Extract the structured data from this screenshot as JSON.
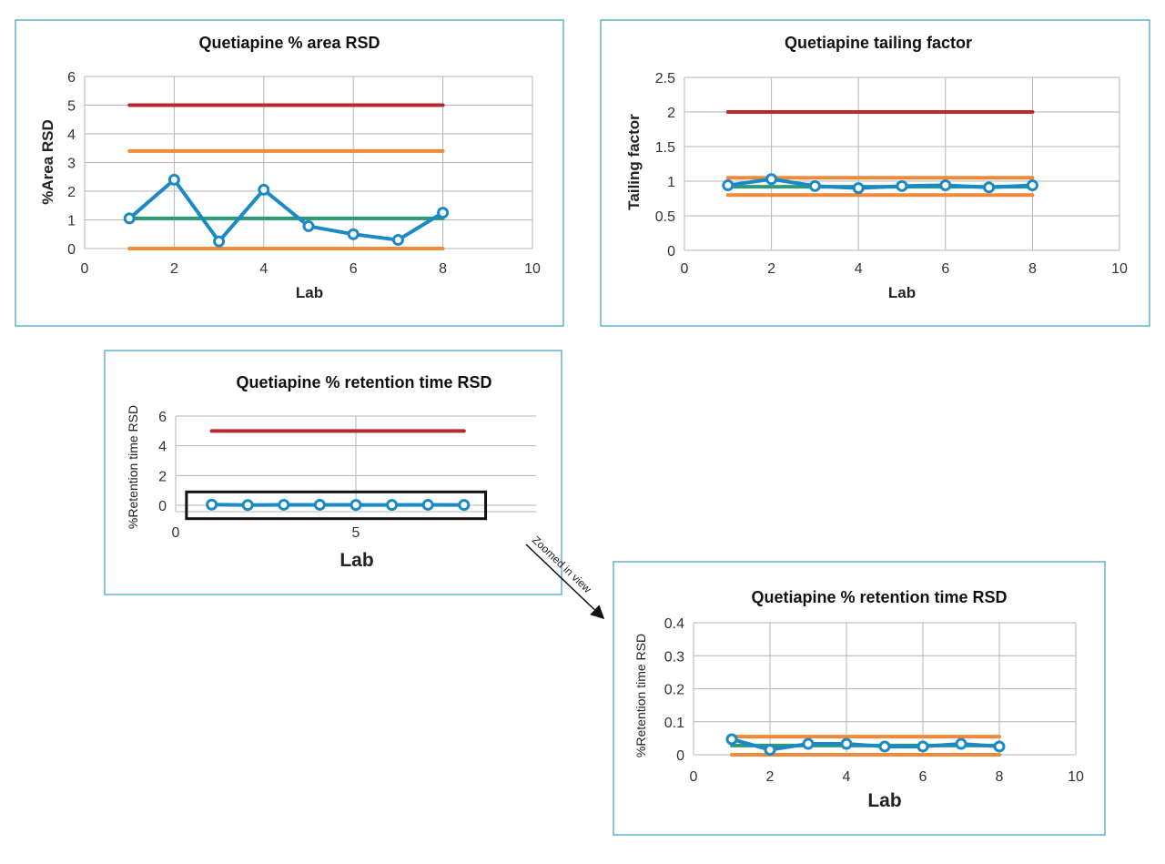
{
  "colors": {
    "panel_border": "#3b9cc0",
    "grid": "#b5b5b5",
    "series": "#1a8ac6",
    "upper_limit": "#b42a2e",
    "range": "#ee8a3a",
    "mean": "#2e9a7a",
    "highlight": "#111111"
  },
  "annotation": {
    "text": "Zoomed in view",
    "icon": "arrow-down-right-icon"
  },
  "chart_data": [
    {
      "type": "line",
      "title": "Quetiapine % area RSD",
      "xlabel": "Lab",
      "ylabel": "%Area RSD",
      "xlim": [
        0,
        10
      ],
      "ylim": [
        0,
        6
      ],
      "xticks": [
        0,
        2,
        4,
        6,
        8,
        10
      ],
      "yticks": [
        0,
        1,
        2,
        3,
        4,
        5,
        6
      ],
      "grid": true,
      "x": [
        1,
        2,
        3,
        4,
        5,
        6,
        7,
        8
      ],
      "series": [
        {
          "values": [
            1.05,
            2.4,
            0.25,
            2.05,
            0.78,
            0.5,
            0.3,
            1.25
          ],
          "color": "#1a8ac6",
          "markers": true
        }
      ],
      "reference_lines": [
        {
          "y": 5,
          "x": [
            1,
            8
          ],
          "color": "#b42a2e"
        },
        {
          "y": 3.4,
          "x": [
            1,
            8
          ],
          "color": "#ee8a3a"
        },
        {
          "y": 1.05,
          "x": [
            1,
            8
          ],
          "color": "#2e9a7a"
        },
        {
          "y": 0,
          "x": [
            1,
            8
          ],
          "color": "#ee8a3a"
        }
      ]
    },
    {
      "type": "line",
      "title": "Quetiapine tailing factor",
      "xlabel": "Lab",
      "ylabel": "Tailing factor",
      "xlim": [
        0,
        10
      ],
      "ylim": [
        0,
        2.5
      ],
      "xticks": [
        0,
        2,
        4,
        6,
        8,
        10
      ],
      "yticks": [
        0,
        0.5,
        1,
        1.5,
        2,
        2.5
      ],
      "grid": true,
      "x": [
        1,
        2,
        3,
        4,
        5,
        6,
        7,
        8
      ],
      "series": [
        {
          "values": [
            0.94,
            1.03,
            0.93,
            0.9,
            0.93,
            0.94,
            0.91,
            0.94
          ],
          "color": "#1a8ac6",
          "markers": true
        }
      ],
      "reference_lines": [
        {
          "y": 2,
          "x": [
            1,
            8
          ],
          "color": "#b42a2e"
        },
        {
          "y": 1.05,
          "x": [
            1,
            8
          ],
          "color": "#ee8a3a"
        },
        {
          "y": 0.92,
          "x": [
            1,
            8
          ],
          "color": "#2e9a7a"
        },
        {
          "y": 0.8,
          "x": [
            1,
            8
          ],
          "color": "#ee8a3a"
        }
      ]
    },
    {
      "type": "line",
      "title": "Quetiapine % retention time RSD",
      "xlabel": "Lab",
      "ylabel": "%Retention time RSD",
      "xlim": [
        0,
        10
      ],
      "ylim": [
        0,
        6
      ],
      "xticks": [
        0,
        5
      ],
      "yticks": [
        0,
        2,
        4,
        6
      ],
      "grid": true,
      "x": [
        1,
        2,
        3,
        4,
        5,
        6,
        7,
        8
      ],
      "series": [
        {
          "values": [
            0.047,
            0.015,
            0.033,
            0.033,
            0.025,
            0.025,
            0.033,
            0.025
          ],
          "color": "#1a8ac6",
          "markers": true
        }
      ],
      "reference_lines": [
        {
          "y": 5,
          "x": [
            1,
            8
          ],
          "color": "#b42a2e"
        }
      ],
      "highlight_box": {
        "x": [
          0.3,
          8.6
        ],
        "y": [
          -0.9,
          0.9
        ]
      }
    },
    {
      "type": "line",
      "title": "Quetiapine % retention time RSD",
      "xlabel": "Lab",
      "ylabel": "%Retention time RSD",
      "xlim": [
        0,
        10
      ],
      "ylim": [
        0,
        0.4
      ],
      "xticks": [
        0,
        2,
        4,
        6,
        8,
        10
      ],
      "yticks": [
        0,
        0.1,
        0.2,
        0.3,
        0.4
      ],
      "grid": true,
      "x": [
        1,
        2,
        3,
        4,
        5,
        6,
        7,
        8
      ],
      "series": [
        {
          "values": [
            0.047,
            0.015,
            0.033,
            0.033,
            0.025,
            0.025,
            0.033,
            0.025
          ],
          "color": "#1a8ac6",
          "markers": true
        }
      ],
      "reference_lines": [
        {
          "y": 0.055,
          "x": [
            1,
            8
          ],
          "color": "#ee8a3a"
        },
        {
          "y": 0.028,
          "x": [
            1,
            8
          ],
          "color": "#2e9a7a"
        },
        {
          "y": 0,
          "x": [
            1,
            8
          ],
          "color": "#ee8a3a"
        }
      ]
    }
  ]
}
